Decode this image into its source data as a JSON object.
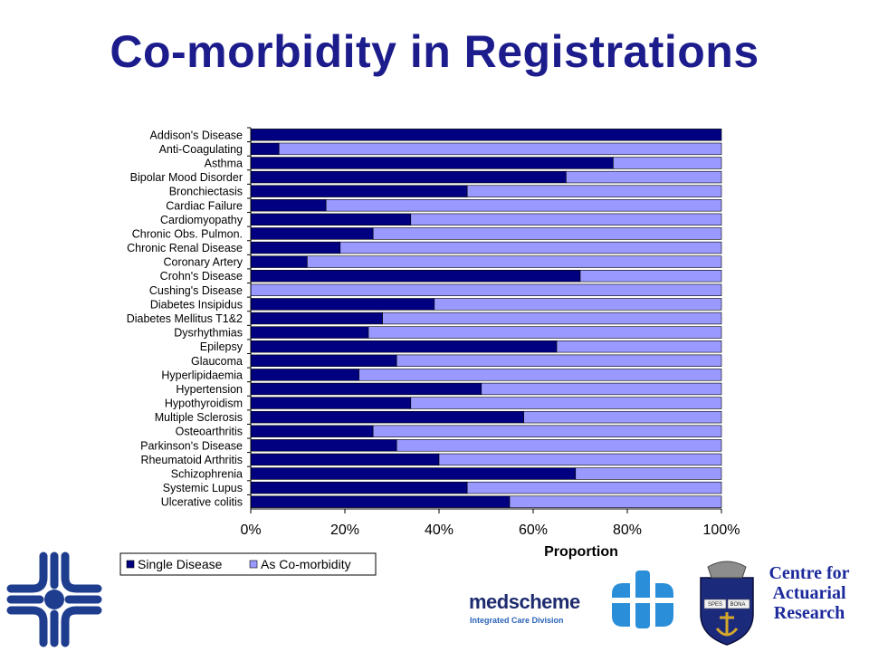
{
  "slide": {
    "title": "Co-morbidity in Registrations"
  },
  "chart_data": {
    "type": "bar",
    "orientation": "horizontal",
    "stacked": true,
    "categories": [
      "Addison's Disease",
      "Anti-Coagulating",
      "Asthma",
      "Bipolar Mood Disorder",
      "Bronchiectasis",
      "Cardiac Failure",
      "Cardiomyopathy",
      "Chronic Obs. Pulmon.",
      "Chronic Renal Disease",
      "Coronary Artery",
      "Crohn's Disease",
      "Cushing's Disease",
      "Diabetes Insipidus",
      "Diabetes Mellitus T1&2",
      "Dysrhythmias",
      "Epilepsy",
      "Glaucoma",
      "Hyperlipidaemia",
      "Hypertension",
      "Hypothyroidism",
      "Multiple Sclerosis",
      "Osteoarthritis",
      "Parkinson's Disease",
      "Rheumatoid Arthritis",
      "Schizophrenia",
      "Systemic Lupus",
      "Ulcerative colitis"
    ],
    "series": [
      {
        "name": "Single Disease",
        "color": "#000080",
        "values": [
          1.0,
          0.06,
          0.77,
          0.67,
          0.46,
          0.16,
          0.34,
          0.26,
          0.19,
          0.12,
          0.7,
          0.0,
          0.39,
          0.28,
          0.25,
          0.65,
          0.31,
          0.23,
          0.49,
          0.34,
          0.58,
          0.26,
          0.31,
          0.4,
          0.69,
          0.46,
          0.55
        ]
      },
      {
        "name": "As Co-morbidity",
        "color": "#9999ff",
        "values": [
          0.0,
          0.94,
          0.23,
          0.33,
          0.54,
          0.84,
          0.66,
          0.74,
          0.81,
          0.88,
          0.3,
          1.0,
          0.61,
          0.72,
          0.75,
          0.35,
          0.69,
          0.77,
          0.51,
          0.66,
          0.42,
          0.74,
          0.69,
          0.6,
          0.31,
          0.54,
          0.45
        ]
      }
    ],
    "xlim": [
      0,
      1
    ],
    "xticks": [
      "0%",
      "20%",
      "40%",
      "60%",
      "80%",
      "100%"
    ],
    "xlabel": "Proportion",
    "ylabel": "",
    "grid": false,
    "legend": "bottom-left"
  },
  "logos": {
    "centre_text": [
      "Centre for",
      "Actuarial",
      "Research"
    ],
    "medscheme_name": "medscheme",
    "medscheme_sub": "Integrated Care Division",
    "crest_motto": [
      "SPES",
      "BONA"
    ],
    "cross_color": "#1f3d8e",
    "medscheme_mark_color": "#2a8ed8",
    "crest_color": "#1c2a7c",
    "crest_gold": "#d4a82a"
  }
}
